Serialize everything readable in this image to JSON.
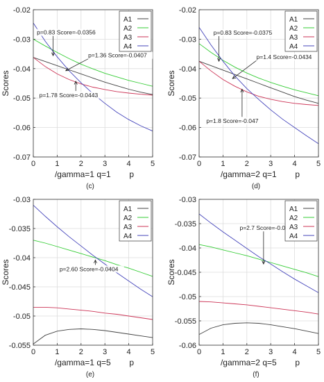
{
  "figure": {
    "colors": {
      "A1": "#404040",
      "A2": "#33cc33",
      "A3": "#cc3355",
      "A4": "#4444bb"
    }
  },
  "chart_data": [
    {
      "id": "c",
      "type": "line",
      "caption": "(c)",
      "xlabel": "/gamma=1 q=1        p",
      "ylabel": "Scores",
      "xlim": [
        0,
        5
      ],
      "ylim": [
        -0.07,
        -0.02
      ],
      "xticks": [
        "0",
        "1",
        "2",
        "3",
        "4",
        "5"
      ],
      "yticks": [
        "-0.02",
        "-0.03",
        "-0.04",
        "-0.05",
        "-0.06",
        "-0.07"
      ],
      "grid": true,
      "legend": "top-right",
      "x": [
        0,
        0.5,
        1,
        1.5,
        2,
        2.5,
        3,
        3.5,
        4,
        4.5,
        5
      ],
      "series": [
        {
          "name": "A1",
          "values": [
            -0.0362,
            -0.0376,
            -0.039,
            -0.0404,
            -0.0418,
            -0.0432,
            -0.0446,
            -0.0458,
            -0.047,
            -0.048,
            -0.0488
          ]
        },
        {
          "name": "A2",
          "values": [
            -0.03,
            -0.0323,
            -0.0345,
            -0.0366,
            -0.0385,
            -0.0401,
            -0.0416,
            -0.0428,
            -0.044,
            -0.045,
            -0.046
          ]
        },
        {
          "name": "A3",
          "values": [
            -0.0362,
            -0.0393,
            -0.0418,
            -0.0437,
            -0.0452,
            -0.0463,
            -0.0471,
            -0.0478,
            -0.0483,
            -0.0487,
            -0.049
          ]
        },
        {
          "name": "A4",
          "values": [
            -0.0245,
            -0.0307,
            -0.036,
            -0.0407,
            -0.0448,
            -0.0485,
            -0.0518,
            -0.0548,
            -0.0573,
            -0.0594,
            -0.0612
          ]
        }
      ],
      "annotations": [
        {
          "text": "p=0.83 Score=-0.0356",
          "px": 0.83,
          "py": -0.0356,
          "tx": 0.15,
          "ty": -0.0284
        },
        {
          "text": "p=1.36 Score=-0.0407",
          "px": 1.36,
          "py": -0.0407,
          "tx": 2.3,
          "ty": -0.0362
        },
        {
          "text": "p=1.78 Score=-0.0443",
          "px": 1.78,
          "py": -0.0443,
          "tx": 0.25,
          "ty": -0.0497
        }
      ]
    },
    {
      "id": "d",
      "type": "line",
      "caption": "(d)",
      "xlabel": "/gamma=2 q=1        p",
      "ylabel": "Scores",
      "xlim": [
        0,
        5
      ],
      "ylim": [
        -0.07,
        -0.02
      ],
      "xticks": [
        "0",
        "1",
        "2",
        "3",
        "4",
        "5"
      ],
      "yticks": [
        "-0.02",
        "-0.03",
        "-0.04",
        "-0.05",
        "-0.06",
        "-0.07"
      ],
      "grid": true,
      "legend": "top-right",
      "x": [
        0,
        0.5,
        1,
        1.5,
        2,
        2.5,
        3,
        3.5,
        4,
        4.5,
        5
      ],
      "series": [
        {
          "name": "A1",
          "values": [
            -0.0375,
            -0.039,
            -0.0405,
            -0.042,
            -0.0435,
            -0.045,
            -0.0465,
            -0.048,
            -0.0495,
            -0.0507,
            -0.0518
          ]
        },
        {
          "name": "A2",
          "values": [
            -0.0315,
            -0.0345,
            -0.0372,
            -0.0395,
            -0.0415,
            -0.0432,
            -0.0447,
            -0.046,
            -0.0472,
            -0.0482,
            -0.0492
          ]
        },
        {
          "name": "A3",
          "values": [
            -0.0375,
            -0.0408,
            -0.0437,
            -0.046,
            -0.0479,
            -0.0494,
            -0.0504,
            -0.0512,
            -0.0518,
            -0.0522,
            -0.0525
          ]
        },
        {
          "name": "A4",
          "values": [
            -0.026,
            -0.032,
            -0.0375,
            -0.0425,
            -0.0468,
            -0.0505,
            -0.054,
            -0.0572,
            -0.06,
            -0.0628,
            -0.0655
          ]
        }
      ],
      "annotations": [
        {
          "text": "p=0.83 Score=-0.0375",
          "px": 0.83,
          "py": -0.0375,
          "tx": 0.6,
          "ty": -0.0285
        },
        {
          "text": "p=1.4 Score=-0.0434",
          "px": 1.4,
          "py": -0.0434,
          "tx": 2.4,
          "ty": -0.0368
        },
        {
          "text": "p=1.8 Score=-0.047",
          "px": 1.8,
          "py": -0.047,
          "tx": 0.3,
          "ty": -0.0585
        }
      ]
    },
    {
      "id": "e",
      "type": "line",
      "caption": "(e)",
      "xlabel": "/gamma=1 q=5        p",
      "ylabel": "Scores",
      "xlim": [
        0,
        5
      ],
      "ylim": [
        -0.055,
        -0.03
      ],
      "xticks": [
        "0",
        "1",
        "2",
        "3",
        "4",
        "5"
      ],
      "yticks": [
        "-0.03",
        "-0.035",
        "-0.04",
        "-0.045",
        "-0.05",
        "-0.055"
      ],
      "grid": true,
      "legend": "top-right",
      "x": [
        0,
        0.5,
        1,
        1.5,
        2,
        2.5,
        3,
        3.5,
        4,
        4.5,
        5
      ],
      "series": [
        {
          "name": "A1",
          "values": [
            -0.0548,
            -0.0533,
            -0.0526,
            -0.0523,
            -0.0522,
            -0.0523,
            -0.0525,
            -0.0528,
            -0.0531,
            -0.0534,
            -0.0537
          ]
        },
        {
          "name": "A2",
          "values": [
            -0.037,
            -0.0375,
            -0.0381,
            -0.0387,
            -0.0393,
            -0.0399,
            -0.0405,
            -0.0412,
            -0.0418,
            -0.0425,
            -0.0432
          ]
        },
        {
          "name": "A3",
          "values": [
            -0.0485,
            -0.0485,
            -0.0486,
            -0.0488,
            -0.049,
            -0.0492,
            -0.0495,
            -0.0497,
            -0.05,
            -0.0503,
            -0.0506
          ]
        },
        {
          "name": "A4",
          "values": [
            -0.031,
            -0.0329,
            -0.0347,
            -0.0364,
            -0.038,
            -0.0396,
            -0.0411,
            -0.0426,
            -0.044,
            -0.0454,
            -0.0467
          ]
        }
      ],
      "annotations": [
        {
          "text": "p=2.60 Score=-0.0404",
          "px": 2.6,
          "py": -0.0404,
          "tx": 1.1,
          "ty": -0.0423
        }
      ]
    },
    {
      "id": "f",
      "type": "line",
      "caption": "(f)",
      "xlabel": "/gamma=2 q=5        p",
      "ylabel": "Scores",
      "xlim": [
        0,
        5
      ],
      "ylim": [
        -0.06,
        -0.03
      ],
      "xticks": [
        "0",
        "1",
        "2",
        "3",
        "4",
        "5"
      ],
      "yticks": [
        "-0.03",
        "-0.035",
        "-0.04",
        "-0.045",
        "-0.05",
        "-0.055",
        "-0.06"
      ],
      "grid": true,
      "legend": "top-right",
      "x": [
        0,
        0.5,
        1,
        1.5,
        2,
        2.5,
        3,
        3.5,
        4,
        4.5,
        5
      ],
      "series": [
        {
          "name": "A1",
          "values": [
            -0.0578,
            -0.0565,
            -0.0558,
            -0.0555,
            -0.0554,
            -0.0555,
            -0.0558,
            -0.0562,
            -0.0566,
            -0.0571,
            -0.0576
          ]
        },
        {
          "name": "A2",
          "values": [
            -0.0393,
            -0.0398,
            -0.0404,
            -0.041,
            -0.0416,
            -0.0423,
            -0.043,
            -0.0437,
            -0.0444,
            -0.0451,
            -0.0459
          ]
        },
        {
          "name": "A3",
          "values": [
            -0.051,
            -0.0511,
            -0.0513,
            -0.0515,
            -0.0517,
            -0.052,
            -0.0523,
            -0.0526,
            -0.0529,
            -0.0532,
            -0.0536
          ]
        },
        {
          "name": "A4",
          "values": [
            -0.033,
            -0.0349,
            -0.0367,
            -0.0384,
            -0.0401,
            -0.0418,
            -0.0433,
            -0.0449,
            -0.0464,
            -0.0478,
            -0.0492
          ]
        }
      ],
      "annotations": [
        {
          "text": "p=2.7 Score=-0.0433",
          "px": 2.7,
          "py": -0.0433,
          "tx": 1.7,
          "ty": -0.0363
        }
      ]
    }
  ]
}
